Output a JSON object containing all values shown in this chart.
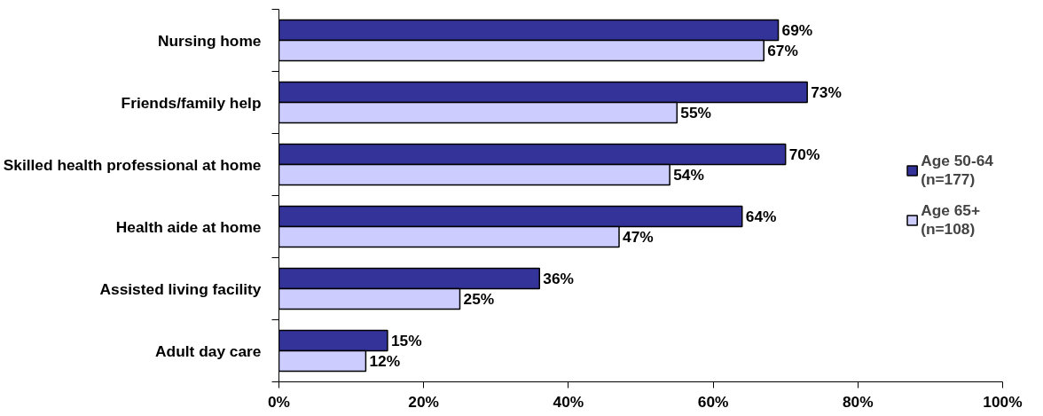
{
  "chart_data": {
    "type": "bar",
    "orientation": "horizontal",
    "categories": [
      "Nursing home",
      "Friends/family help",
      "Skilled health professional at home",
      "Health aide at home",
      "Assisted living facility",
      "Adult day care"
    ],
    "series": [
      {
        "name": "Age 50-64\n(n=177)",
        "color": "#333399",
        "values": [
          69,
          73,
          70,
          64,
          36,
          15
        ],
        "value_labels": [
          "69%",
          "73%",
          "70%",
          "64%",
          "36%",
          "15%"
        ]
      },
      {
        "name": "Age 65+\n(n=108)",
        "color": "#ccccff",
        "values": [
          67,
          55,
          54,
          47,
          25,
          12
        ],
        "value_labels": [
          "67%",
          "55%",
          "54%",
          "47%",
          "25%",
          "12%"
        ]
      }
    ],
    "xlim": [
      0,
      100
    ],
    "xticks": [
      {
        "value": 0,
        "label": "0%"
      },
      {
        "value": 20,
        "label": "20%"
      },
      {
        "value": 40,
        "label": "40%"
      },
      {
        "value": 60,
        "label": "60%"
      },
      {
        "value": 80,
        "label": "80%"
      },
      {
        "value": 100,
        "label": "100%"
      }
    ],
    "grid": false,
    "legend": "right"
  }
}
